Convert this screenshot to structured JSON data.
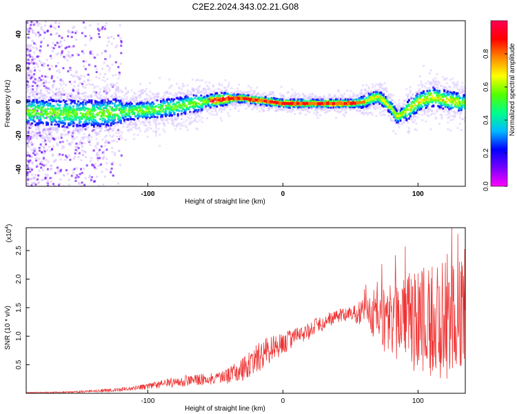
{
  "title": "C2E2.2024.343.02.21.G08",
  "colors": {
    "snr_line": "#ee3333",
    "axis": "#000000",
    "background": "#ffffff"
  },
  "chart_data": [
    {
      "type": "heatmap",
      "xlabel": "Height of straight line (km)",
      "ylabel": "Frequency (Hz)",
      "xlim": [
        -190,
        135
      ],
      "ylim": [
        -50,
        48
      ],
      "x_ticks": [
        -100,
        0,
        100
      ],
      "y_ticks": [
        -40,
        -20,
        0,
        20,
        40
      ],
      "colorbar": {
        "label": "Normalized spectral amplitude",
        "range": [
          0.0,
          1.0
        ],
        "ticks": [
          "0.0",
          "0.2",
          "0.4",
          "0.6",
          "0.8"
        ],
        "colormap": [
          "#ff00ff",
          "#7700ff",
          "#0000ff",
          "#00bbff",
          "#00ff88",
          "#55ff00",
          "#ffff00",
          "#ff8800",
          "#ff0000",
          "#ff0055"
        ]
      },
      "ridge": {
        "x": [
          -180,
          -160,
          -140,
          -120,
          -100,
          -80,
          -60,
          -50,
          -40,
          -30,
          -20,
          -10,
          0,
          20,
          40,
          50,
          60,
          65,
          70,
          75,
          80,
          84,
          90,
          100,
          110,
          120,
          135
        ],
        "y": [
          -6,
          -7,
          -7,
          -6,
          -5,
          -3,
          0,
          1,
          2,
          2,
          1,
          0,
          -1,
          -1,
          -1,
          -1,
          0,
          2,
          3,
          0,
          -4,
          -9,
          -6,
          0,
          3,
          1,
          -1
        ]
      }
    },
    {
      "type": "line",
      "xlabel": "Height of straight line (km)",
      "ylabel": "SNR (10 * v/v)",
      "y_scale_label": "(x10",
      "y_scale_exp": "4",
      "xlim": [
        -190,
        135
      ],
      "ylim": [
        0,
        2.9
      ],
      "x_ticks": [
        -100,
        0,
        100
      ],
      "y_ticks": [
        0.5,
        1.0,
        1.5,
        2.0,
        2.5
      ],
      "envelope": {
        "x": [
          -190,
          -160,
          -130,
          -110,
          -100,
          -90,
          -80,
          -70,
          -60,
          -50,
          -40,
          -30,
          -20,
          -10,
          0,
          10,
          20,
          30,
          40,
          50,
          60,
          70,
          80,
          90,
          100,
          110,
          120,
          130,
          135
        ],
        "mean": [
          0.01,
          0.02,
          0.05,
          0.09,
          0.12,
          0.16,
          0.2,
          0.22,
          0.24,
          0.26,
          0.3,
          0.42,
          0.6,
          0.75,
          0.85,
          1.0,
          1.1,
          1.25,
          1.35,
          1.4,
          1.4,
          1.3,
          1.25,
          1.25,
          1.25,
          1.25,
          1.2,
          1.25,
          1.2
        ],
        "spread": [
          0.01,
          0.015,
          0.03,
          0.04,
          0.05,
          0.07,
          0.09,
          0.1,
          0.1,
          0.1,
          0.15,
          0.2,
          0.25,
          0.25,
          0.2,
          0.15,
          0.15,
          0.15,
          0.12,
          0.12,
          0.25,
          0.45,
          0.65,
          0.8,
          0.95,
          1.0,
          1.1,
          1.1,
          1.1
        ]
      }
    }
  ]
}
